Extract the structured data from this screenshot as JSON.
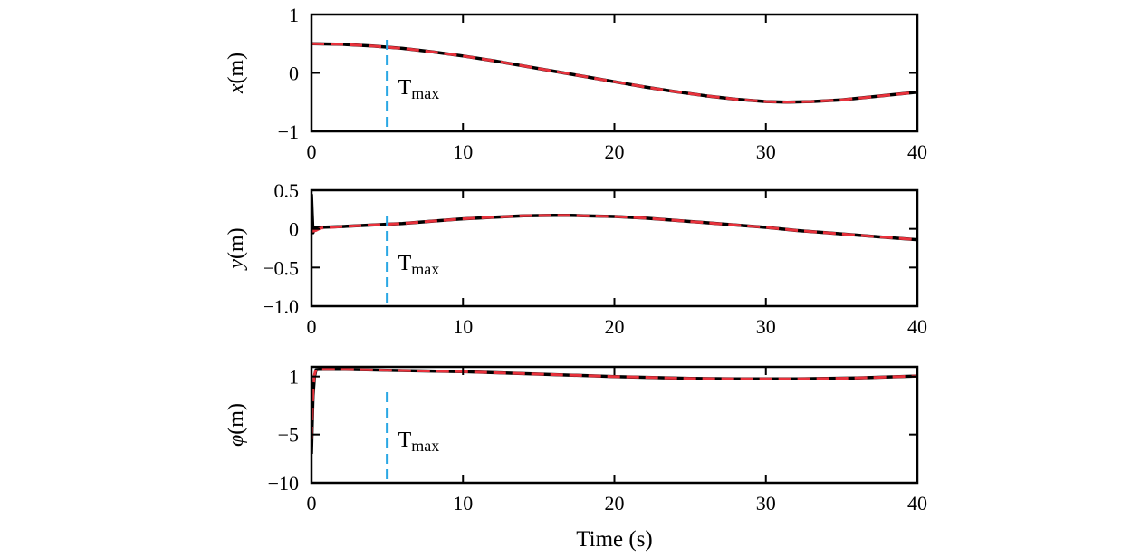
{
  "chart_data": [
    {
      "type": "line",
      "ylabel": {
        "symbol": "x",
        "unit": "(m)"
      },
      "xlim": [
        0,
        40
      ],
      "ylim": [
        -1,
        1
      ],
      "xticks": [
        "0",
        "10",
        "20",
        "30",
        "40"
      ],
      "yticks": [
        {
          "value": 1,
          "label": "1"
        },
        {
          "value": 0,
          "label": "0"
        },
        {
          "value": -1,
          "label": "−1"
        }
      ],
      "annotation": {
        "text": "T",
        "subscript": "max",
        "x": 5
      },
      "series": [
        {
          "role": "reference",
          "color": "#000000",
          "style": "solid",
          "x": [
            0,
            2,
            4,
            6,
            8,
            10,
            12,
            14,
            16,
            18,
            20,
            22,
            24,
            26,
            28,
            30,
            31.4,
            33,
            35,
            37,
            40
          ],
          "y": [
            0.5,
            0.49,
            0.46,
            0.42,
            0.36,
            0.29,
            0.21,
            0.12,
            0.03,
            -0.06,
            -0.15,
            -0.24,
            -0.32,
            -0.39,
            -0.45,
            -0.49,
            -0.5,
            -0.49,
            -0.46,
            -0.41,
            -0.33
          ]
        },
        {
          "role": "actual",
          "color": "#e8323c",
          "style": "dashed",
          "x": [
            0,
            2,
            4,
            6,
            8,
            10,
            12,
            14,
            16,
            18,
            20,
            22,
            24,
            26,
            28,
            30,
            31.4,
            33,
            35,
            37,
            40
          ],
          "y": [
            0.5,
            0.49,
            0.46,
            0.42,
            0.36,
            0.29,
            0.21,
            0.12,
            0.03,
            -0.06,
            -0.15,
            -0.24,
            -0.32,
            -0.39,
            -0.45,
            -0.49,
            -0.5,
            -0.49,
            -0.46,
            -0.41,
            -0.33
          ]
        }
      ]
    },
    {
      "type": "line",
      "ylabel": {
        "symbol": "y",
        "unit": "(m)"
      },
      "xlim": [
        0,
        40
      ],
      "ylim": [
        -1.0,
        0.5
      ],
      "xticks": [
        "0",
        "10",
        "20",
        "30",
        "40"
      ],
      "yticks": [
        {
          "value": 0.5,
          "label": "0.5"
        },
        {
          "value": 0,
          "label": "0"
        },
        {
          "value": -0.5,
          "label": "−0.5"
        },
        {
          "value": -1.0,
          "label": "−1.0"
        }
      ],
      "annotation": {
        "text": "T",
        "subscript": "max",
        "x": 5
      },
      "series": [
        {
          "role": "reference",
          "color": "#000000",
          "style": "solid",
          "x": [
            0,
            0.05,
            0.1,
            0.2,
            0.5,
            2,
            4,
            6,
            8,
            10,
            12,
            14,
            16,
            17,
            18,
            20,
            22,
            24,
            26,
            28,
            30,
            32,
            34,
            36,
            38,
            40
          ],
          "y": [
            0.45,
            0.2,
            -0.05,
            0.02,
            0.02,
            0.03,
            0.05,
            0.07,
            0.1,
            0.13,
            0.15,
            0.17,
            0.175,
            0.175,
            0.17,
            0.16,
            0.14,
            0.11,
            0.08,
            0.05,
            0.02,
            -0.02,
            -0.05,
            -0.08,
            -0.11,
            -0.14
          ]
        },
        {
          "role": "actual",
          "color": "#e8323c",
          "style": "dashed",
          "x": [
            0,
            0.1,
            0.3,
            0.6,
            2,
            4,
            6,
            8,
            10,
            12,
            14,
            16,
            17,
            18,
            20,
            22,
            24,
            26,
            28,
            30,
            32,
            34,
            36,
            38,
            40
          ],
          "y": [
            -0.02,
            -0.03,
            -0.02,
            0.01,
            0.03,
            0.05,
            0.07,
            0.1,
            0.13,
            0.15,
            0.17,
            0.175,
            0.175,
            0.17,
            0.16,
            0.14,
            0.11,
            0.08,
            0.05,
            0.02,
            -0.02,
            -0.05,
            -0.08,
            -0.11,
            -0.14
          ]
        }
      ]
    },
    {
      "type": "line",
      "ylabel": {
        "symbol": "φ",
        "unit": "(m)"
      },
      "xlim": [
        0,
        40
      ],
      "ylim": [
        -10,
        2
      ],
      "xticks": [
        "0",
        "10",
        "20",
        "30",
        "40"
      ],
      "yticks": [
        {
          "value": 1,
          "label": "1"
        },
        {
          "value": -5,
          "label": "−5"
        },
        {
          "value": -10,
          "label": "−10"
        }
      ],
      "xlabel": "Time (s)",
      "annotation": {
        "text": "T",
        "subscript": "max",
        "x": 5
      },
      "series": [
        {
          "role": "reference",
          "color": "#000000",
          "style": "solid",
          "x": [
            0,
            0.05,
            0.1,
            0.2,
            0.3,
            0.5,
            2,
            5,
            10,
            15,
            20,
            25,
            28,
            32,
            36,
            40
          ],
          "y": [
            -7.0,
            -4.0,
            -1.0,
            1.0,
            1.7,
            1.75,
            1.75,
            1.65,
            1.5,
            1.25,
            1.0,
            0.8,
            0.75,
            0.75,
            0.85,
            1.05
          ]
        },
        {
          "role": "actual",
          "color": "#e8323c",
          "style": "dashed",
          "x": [
            0,
            0.05,
            0.1,
            0.2,
            0.3,
            0.5,
            2,
            5,
            10,
            15,
            20,
            25,
            28,
            32,
            36,
            40
          ],
          "y": [
            -5.5,
            -3.0,
            -0.5,
            1.2,
            1.7,
            1.75,
            1.75,
            1.65,
            1.5,
            1.25,
            1.0,
            0.8,
            0.75,
            0.75,
            0.85,
            1.05
          ]
        }
      ]
    }
  ],
  "colors": {
    "annotation_line": "#2aa7e4",
    "frame": "#000000"
  }
}
